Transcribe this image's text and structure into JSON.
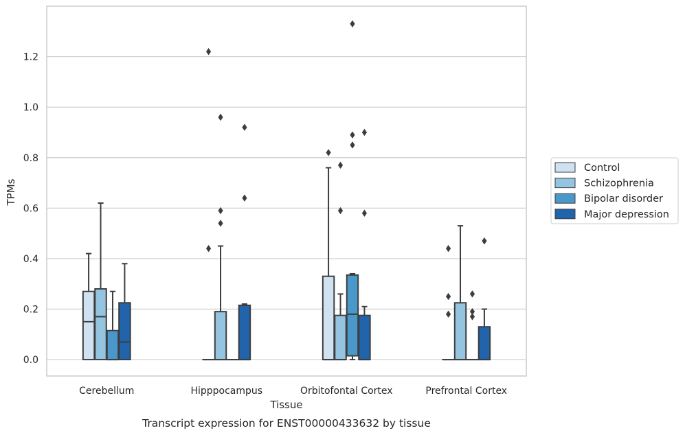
{
  "chart_data": {
    "type": "box",
    "xlabel": "Tissue",
    "ylabel": "TPMs",
    "caption": "Transcript expression for ENST00000433632 by tissue",
    "categories": [
      "Cerebellum",
      "Hipppocampus",
      "Orbitofontal Cortex",
      "Prefrontal Cortex"
    ],
    "ylim": [
      -0.065,
      1.4
    ],
    "yticks": [
      0.0,
      0.2,
      0.4,
      0.6,
      0.8,
      1.0,
      1.2
    ],
    "ytick_labels": [
      "0.0",
      "0.2",
      "0.4",
      "0.6",
      "0.8",
      "1.0",
      "1.2"
    ],
    "grid": "horizontal",
    "legend_position": "right",
    "series": [
      {
        "name": "Control",
        "color": "#d0e1f2",
        "boxes": [
          {
            "q1": 0.0,
            "median": 0.15,
            "q3": 0.27,
            "whisker_low": 0.0,
            "whisker_high": 0.42,
            "outliers": []
          },
          {
            "q1": 0.0,
            "median": 0.0,
            "q3": 0.0,
            "whisker_low": 0.0,
            "whisker_high": 0.0,
            "outliers": [
              0.44,
              1.22
            ]
          },
          {
            "q1": 0.0,
            "median": 0.0,
            "q3": 0.33,
            "whisker_low": 0.0,
            "whisker_high": 0.76,
            "outliers": [
              0.82
            ]
          },
          {
            "q1": 0.0,
            "median": 0.0,
            "q3": 0.0,
            "whisker_low": 0.0,
            "whisker_high": 0.0,
            "outliers": [
              0.18,
              0.25,
              0.44
            ]
          }
        ]
      },
      {
        "name": "Schizophrenia",
        "color": "#94c4df",
        "boxes": [
          {
            "q1": 0.0,
            "median": 0.17,
            "q3": 0.28,
            "whisker_low": 0.0,
            "whisker_high": 0.62,
            "outliers": []
          },
          {
            "q1": 0.0,
            "median": 0.0,
            "q3": 0.19,
            "whisker_low": 0.0,
            "whisker_high": 0.45,
            "outliers": [
              0.54,
              0.59,
              0.96
            ]
          },
          {
            "q1": 0.0,
            "median": 0.0,
            "q3": 0.175,
            "whisker_low": 0.0,
            "whisker_high": 0.26,
            "outliers": [
              0.59,
              0.77
            ]
          },
          {
            "q1": 0.0,
            "median": 0.0,
            "q3": 0.225,
            "whisker_low": 0.0,
            "whisker_high": 0.53,
            "outliers": []
          }
        ]
      },
      {
        "name": "Bipolar disorder",
        "color": "#4a98c9",
        "boxes": [
          {
            "q1": 0.0,
            "median": 0.0,
            "q3": 0.115,
            "whisker_low": 0.0,
            "whisker_high": 0.27,
            "outliers": []
          },
          {
            "q1": 0.0,
            "median": 0.0,
            "q3": 0.0,
            "whisker_low": 0.0,
            "whisker_high": 0.0,
            "outliers": []
          },
          {
            "q1": 0.015,
            "median": 0.18,
            "q3": 0.335,
            "whisker_low": 0.0,
            "whisker_high": 0.34,
            "outliers": [
              0.85,
              0.89,
              1.33
            ]
          },
          {
            "q1": 0.0,
            "median": 0.0,
            "q3": 0.0,
            "whisker_low": 0.0,
            "whisker_high": 0.0,
            "outliers": [
              0.17,
              0.19,
              0.26
            ]
          }
        ]
      },
      {
        "name": "Major depression",
        "color": "#2164ab",
        "boxes": [
          {
            "q1": 0.0,
            "median": 0.07,
            "q3": 0.225,
            "whisker_low": 0.0,
            "whisker_high": 0.38,
            "outliers": []
          },
          {
            "q1": 0.0,
            "median": 0.0,
            "q3": 0.215,
            "whisker_low": 0.0,
            "whisker_high": 0.22,
            "outliers": [
              0.64,
              0.92
            ]
          },
          {
            "q1": 0.0,
            "median": 0.0,
            "q3": 0.175,
            "whisker_low": 0.0,
            "whisker_high": 0.21,
            "outliers": [
              0.58,
              0.9
            ]
          },
          {
            "q1": 0.0,
            "median": 0.0,
            "q3": 0.13,
            "whisker_low": 0.0,
            "whisker_high": 0.2,
            "outliers": [
              0.47
            ]
          }
        ]
      }
    ]
  }
}
